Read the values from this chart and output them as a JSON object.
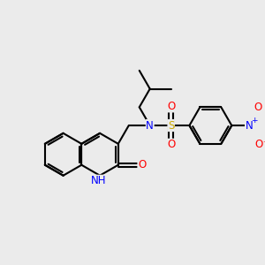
{
  "background_color": "#ebebeb",
  "bond_color": "#000000",
  "atom_colors": {
    "N": "#0000ff",
    "O": "#ff0000",
    "S": "#ccaa00",
    "C": "#000000",
    "H": "#000000"
  },
  "line_width": 1.5,
  "font_size": 8.5,
  "figsize": [
    3.0,
    3.0
  ],
  "dpi": 100
}
